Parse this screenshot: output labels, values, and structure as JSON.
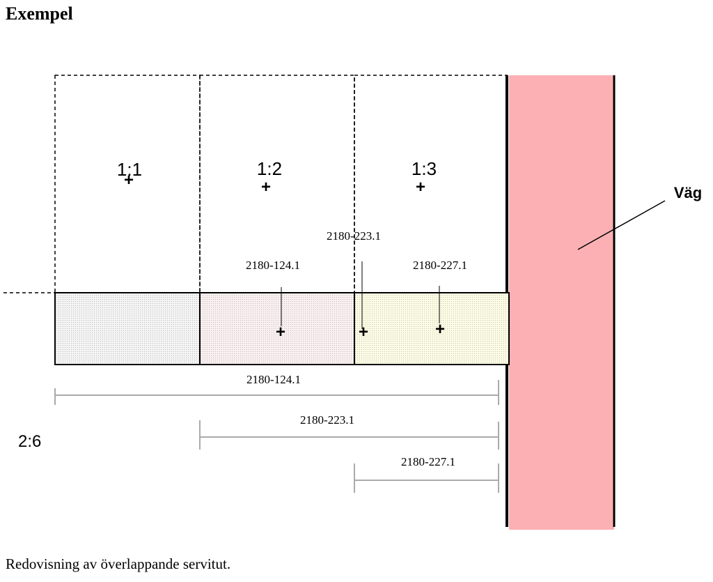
{
  "header": {
    "title": "Exempel"
  },
  "parcels": [
    {
      "label": "1:1"
    },
    {
      "label": "1:2"
    },
    {
      "label": "1:3"
    }
  ],
  "servitudes": [
    {
      "label": "2180-124.1"
    },
    {
      "label": "2180-223.1"
    },
    {
      "label": "2180-227.1"
    }
  ],
  "dimensions": [
    {
      "label": "2180-124.1"
    },
    {
      "label": "2180-223.1"
    },
    {
      "label": "2180-227.1"
    }
  ],
  "lower_parcel": {
    "label": "2:6"
  },
  "road": {
    "label": "Väg"
  },
  "caption": "Redovisning av överlappande servitut."
}
